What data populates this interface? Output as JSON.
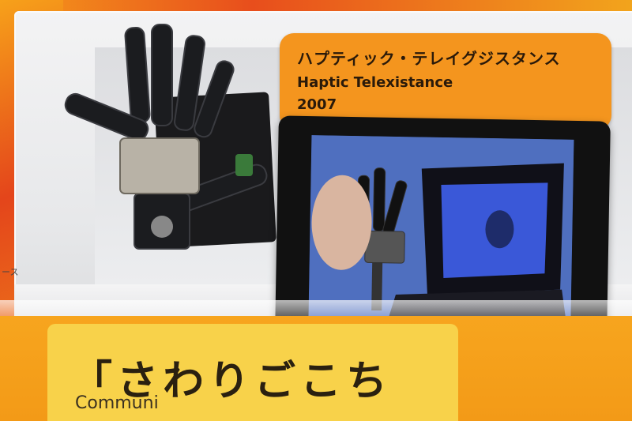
{
  "exhibit": {
    "label_jp": "ハプティック・テレイグジスタンス",
    "label_en": "Haptic Telexistance",
    "label_year": "2007"
  },
  "sign": {
    "jp": "「さわりごこち",
    "en": "Communi"
  },
  "side_fragment": "ース",
  "colors": {
    "label": "#f4951e",
    "sign": "#f8d24a",
    "backdrop": "#e4451b"
  }
}
